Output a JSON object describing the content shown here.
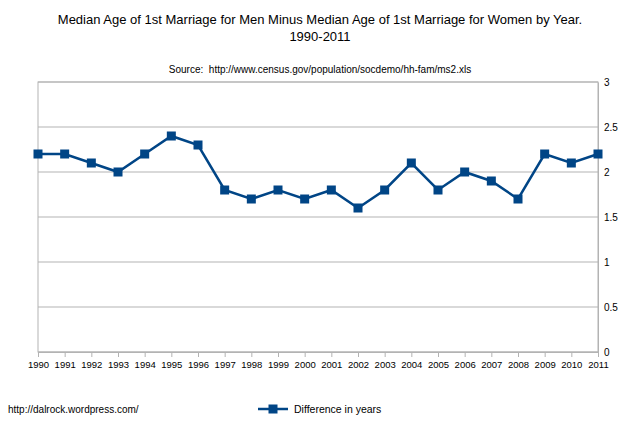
{
  "chart_data": {
    "type": "line",
    "title": [
      "Median Age of 1st Marriage for Men Minus Median Age of 1st Marriage for Women by Year.",
      "1990-2011"
    ],
    "subtitle": "Source:  http://www.census.gov/population/socdemo/hh-fam/ms2.xls",
    "annotations": [
      "http://dalrock.wordpress.com/"
    ],
    "categories": [
      "1990",
      "1991",
      "1992",
      "1993",
      "1994",
      "1995",
      "1996",
      "1997",
      "1998",
      "1999",
      "2000",
      "2001",
      "2002",
      "2003",
      "2004",
      "2005",
      "2006",
      "2007",
      "2008",
      "2009",
      "2010",
      "2011"
    ],
    "series": [
      {
        "name": "Difference in years",
        "color": "#004586",
        "marker": "square",
        "values": [
          2.2,
          2.2,
          2.1,
          2.0,
          2.2,
          2.4,
          2.3,
          1.8,
          1.7,
          1.8,
          1.7,
          1.8,
          1.6,
          1.8,
          2.1,
          1.8,
          2.0,
          1.9,
          1.7,
          2.2,
          2.1,
          2.2
        ]
      }
    ],
    "ylim": [
      0,
      3
    ],
    "yticks": [
      0,
      0.5,
      1,
      1.5,
      2,
      2.5,
      3
    ],
    "grid": true,
    "legend": "bottom"
  }
}
